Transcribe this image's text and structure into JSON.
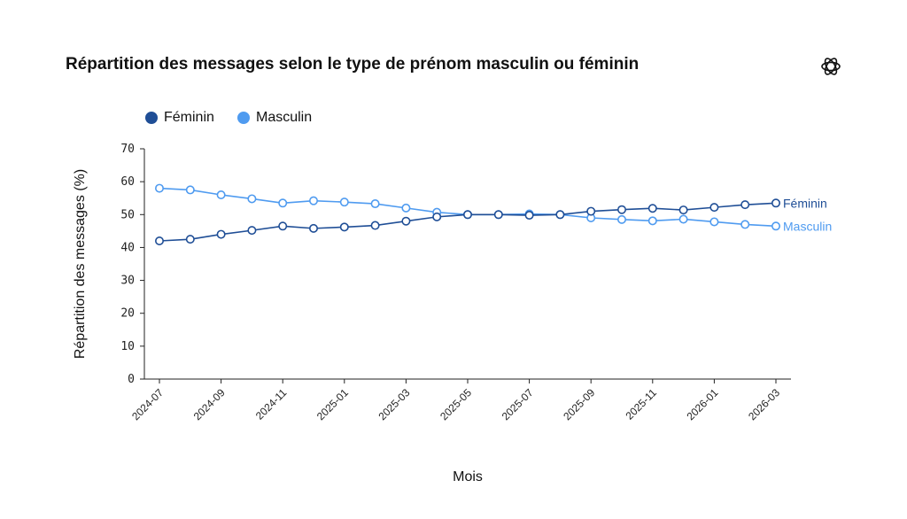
{
  "chart_data": {
    "type": "line",
    "title": "Répartition des messages selon le type de prénom masculin ou féminin",
    "xlabel": "Mois",
    "ylabel": "Répartition des messages (%)",
    "ylim": [
      0,
      70
    ],
    "yticks": [
      0,
      10,
      20,
      30,
      40,
      50,
      60,
      70
    ],
    "x": [
      "2024-07",
      "2024-08",
      "2024-09",
      "2024-10",
      "2024-11",
      "2024-12",
      "2025-01",
      "2025-02",
      "2025-03",
      "2025-04",
      "2025-05",
      "2025-06",
      "2025-07",
      "2025-08",
      "2025-09",
      "2025-10",
      "2025-11",
      "2025-12",
      "2026-01",
      "2026-02",
      "2026-03"
    ],
    "xtick_labels": [
      "2024-07",
      "2024-09",
      "2024-11",
      "2025-01",
      "2025-03",
      "2025-05",
      "2025-07",
      "2025-09",
      "2025-11",
      "2026-01",
      "2026-03"
    ],
    "grid": false,
    "legend_position": "top-left",
    "series": [
      {
        "name": "Féminin",
        "color": "#1f4e96",
        "values": [
          42.0,
          42.5,
          44.0,
          45.2,
          46.5,
          45.8,
          46.2,
          46.7,
          48.0,
          49.3,
          50.0,
          50.0,
          49.8,
          50.0,
          51.0,
          51.5,
          51.9,
          51.4,
          52.2,
          53.0,
          53.5
        ]
      },
      {
        "name": "Masculin",
        "color": "#4f9bf0",
        "values": [
          58.0,
          57.5,
          56.0,
          54.8,
          53.5,
          54.2,
          53.8,
          53.3,
          52.0,
          50.7,
          50.0,
          50.0,
          50.2,
          50.0,
          49.0,
          48.5,
          48.1,
          48.6,
          47.8,
          47.0,
          46.5
        ]
      }
    ]
  }
}
